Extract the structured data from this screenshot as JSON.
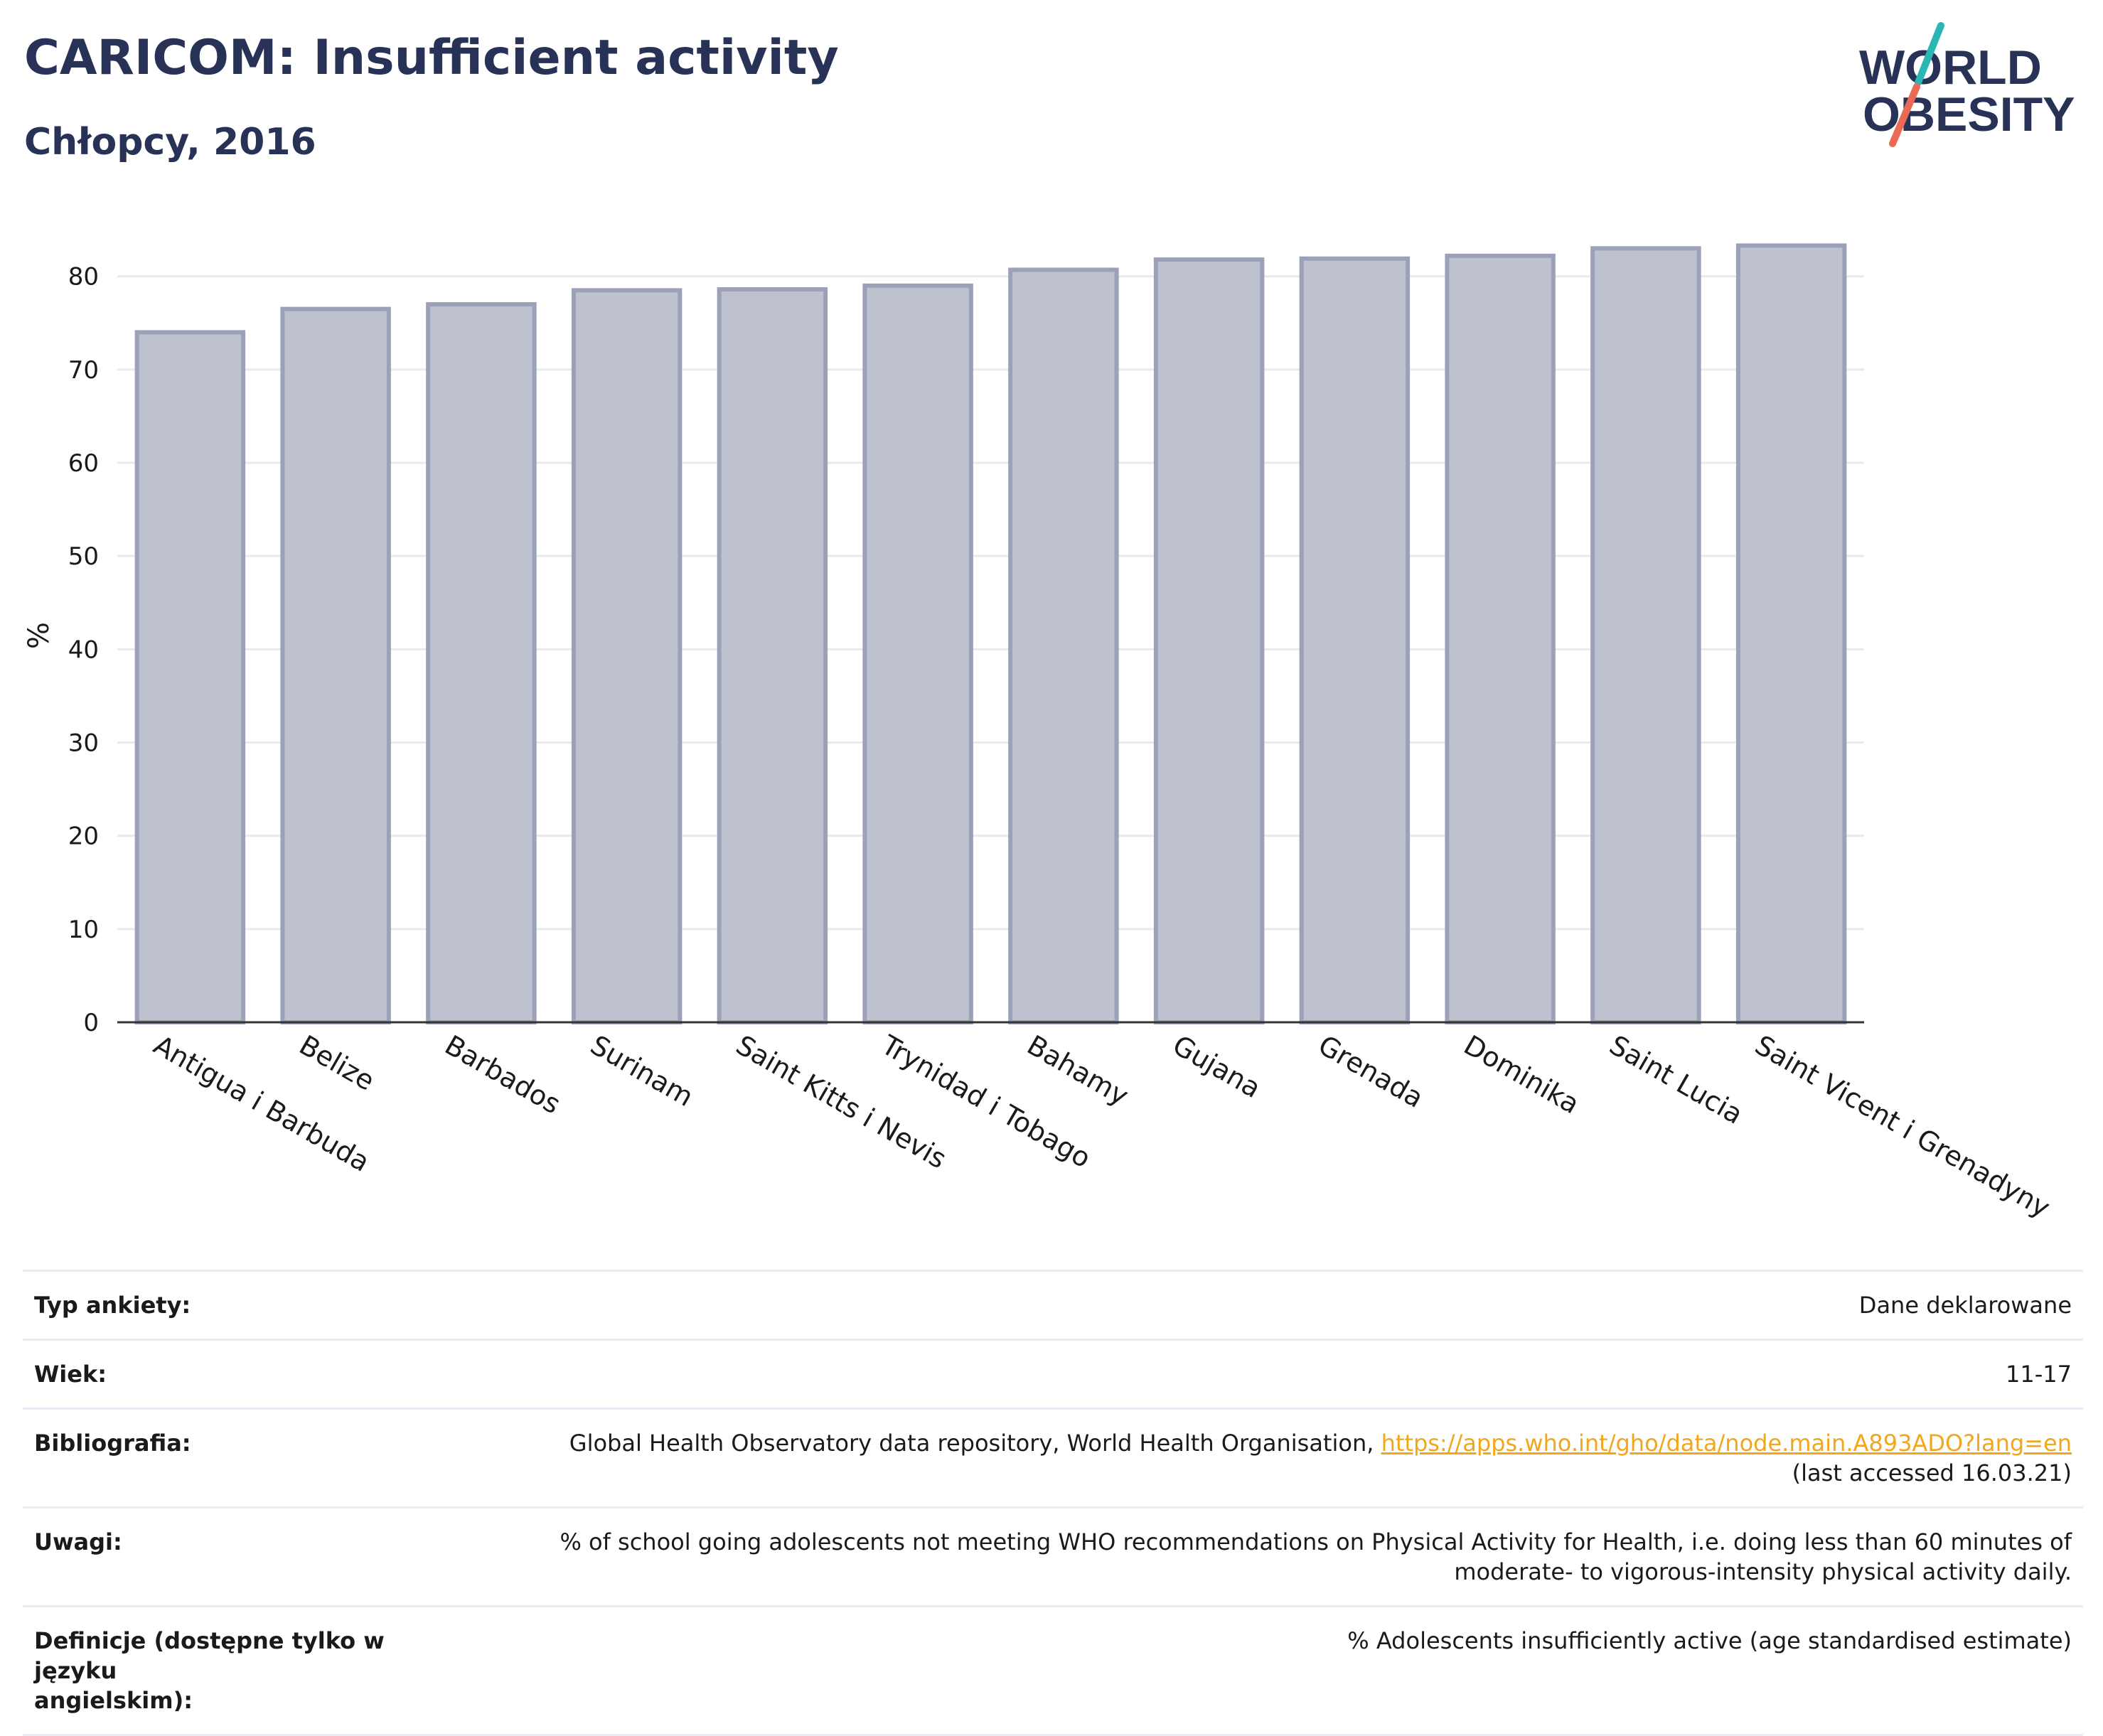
{
  "header": {
    "title": "CARICOM: Insufficient activity",
    "subtitle": "Chłopcy, 2016"
  },
  "logo": {
    "line1": "WORLD",
    "line2": "OBESITY",
    "slash_top_color": "#2bb6b5",
    "slash_bottom_color": "#ea6a55",
    "text_color": "#283256"
  },
  "colors": {
    "bar_fill": "#bec2cf",
    "bar_stroke": "#9ba1b8",
    "grid": "#e9eaee",
    "axis": "#333333"
  },
  "chart_data": {
    "type": "bar",
    "title": "CARICOM: Insufficient activity",
    "subtitle": "Chłopcy, 2016",
    "xlabel": "",
    "ylabel": "%",
    "ylim": [
      0,
      86
    ],
    "yticks": [
      0,
      10,
      20,
      30,
      40,
      50,
      60,
      70,
      80
    ],
    "grid": true,
    "categories": [
      "Antigua i Barbuda",
      "Belize",
      "Barbados",
      "Surinam",
      "Saint Kitts i Nevis",
      "Trynidad i Tobago",
      "Bahamy",
      "Gujana",
      "Grenada",
      "Dominika",
      "Saint Lucia",
      "Saint Vicent i Grenadyny"
    ],
    "values": [
      74.0,
      76.5,
      77.0,
      78.5,
      78.6,
      79.0,
      80.7,
      81.8,
      81.9,
      82.2,
      83.0,
      83.3
    ]
  },
  "info": [
    {
      "label": "Typ ankiety:",
      "value": "Dane deklarowane"
    },
    {
      "label": "Wiek:",
      "value": "11-17"
    },
    {
      "label": "Bibliografia:",
      "value": "Global Health Observatory data repository, World Health Organisation, ",
      "link": "https://apps.who.int/gho/data/node.main.A893ADO?lang=en",
      "value2": "(last accessed 16.03.21)"
    },
    {
      "label": "Uwagi:",
      "value": "% of school going adolescents not meeting WHO recommendations on Physical Activity for Health, i.e. doing less than 60 minutes of",
      "value2": "moderate- to vigorous-intensity physical activity daily."
    },
    {
      "label": "Definicje (dostępne tylko w języku",
      "label2": "angielskim):",
      "value": "% Adolescents insufficiently active (age standardised estimate)"
    }
  ]
}
